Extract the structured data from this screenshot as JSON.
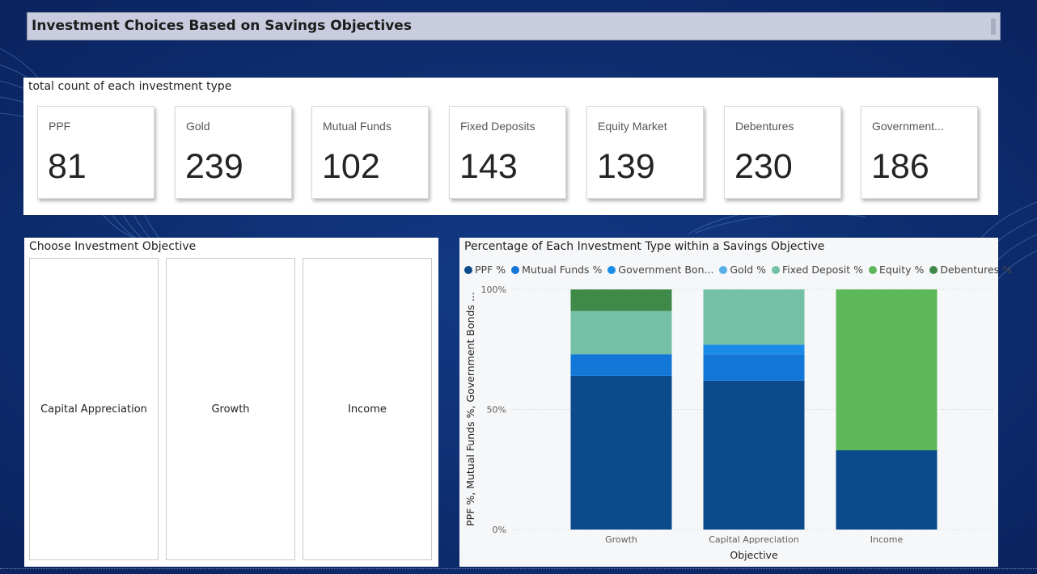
{
  "header": {
    "title": "Investment Choices Based on Savings Objectives"
  },
  "kpi_panel": {
    "title": "total count of each investment type",
    "cards": [
      {
        "label": "PPF",
        "value": "81"
      },
      {
        "label": "Gold",
        "value": "239"
      },
      {
        "label": "Mutual Funds",
        "value": "102"
      },
      {
        "label": "Fixed Deposits",
        "value": "143"
      },
      {
        "label": "Equity Market",
        "value": "139"
      },
      {
        "label": "Debentures",
        "value": "230"
      },
      {
        "label": "Government...",
        "value": "186"
      }
    ]
  },
  "slicer": {
    "title": "Choose Investment Objective",
    "options": [
      "Capital Appreciation",
      "Growth",
      "Income"
    ]
  },
  "chart": {
    "title": "Percentage of Each Investment Type within a Savings Objective",
    "legend": [
      {
        "label": "PPF %",
        "color": "#0b4a8b"
      },
      {
        "label": "Mutual Funds %",
        "color": "#1277d6"
      },
      {
        "label": "Government Bon...",
        "color": "#1a8ce8"
      },
      {
        "label": "Gold %",
        "color": "#5aaeea"
      },
      {
        "label": "Fixed Deposit %",
        "color": "#73c0a6"
      },
      {
        "label": "Equity %",
        "color": "#5cb85a"
      },
      {
        "label": "Debentures %",
        "color": "#3f8a48"
      }
    ]
  },
  "chart_data": {
    "type": "bar",
    "stacked": true,
    "percent": true,
    "title": "Percentage of Each Investment Type within a Savings Objective",
    "xlabel": "Objective",
    "ylabel": "PPF %, Mutual Funds %, Government Bonds ...",
    "categories": [
      "Growth",
      "Capital Appreciation",
      "Income"
    ],
    "y_ticks": [
      "0%",
      "50%",
      "100%"
    ],
    "ylim": [
      0,
      100
    ],
    "grid": true,
    "legend_position": "top-left",
    "series": [
      {
        "name": "PPF %",
        "color": "#0b4a8b",
        "values": [
          64,
          62,
          33
        ]
      },
      {
        "name": "Mutual Funds %",
        "color": "#1277d6",
        "values": [
          9,
          11,
          0
        ]
      },
      {
        "name": "Government Bon...",
        "color": "#1a8ce8",
        "values": [
          0,
          4,
          0
        ]
      },
      {
        "name": "Gold %",
        "color": "#5aaeea",
        "values": [
          0,
          0,
          0
        ]
      },
      {
        "name": "Fixed Deposit %",
        "color": "#73c0a6",
        "values": [
          18,
          23,
          0
        ]
      },
      {
        "name": "Equity %",
        "color": "#5cb85a",
        "values": [
          0,
          0,
          67
        ]
      },
      {
        "name": "Debentures %",
        "color": "#3f8a48",
        "values": [
          9,
          0,
          0
        ]
      }
    ]
  }
}
